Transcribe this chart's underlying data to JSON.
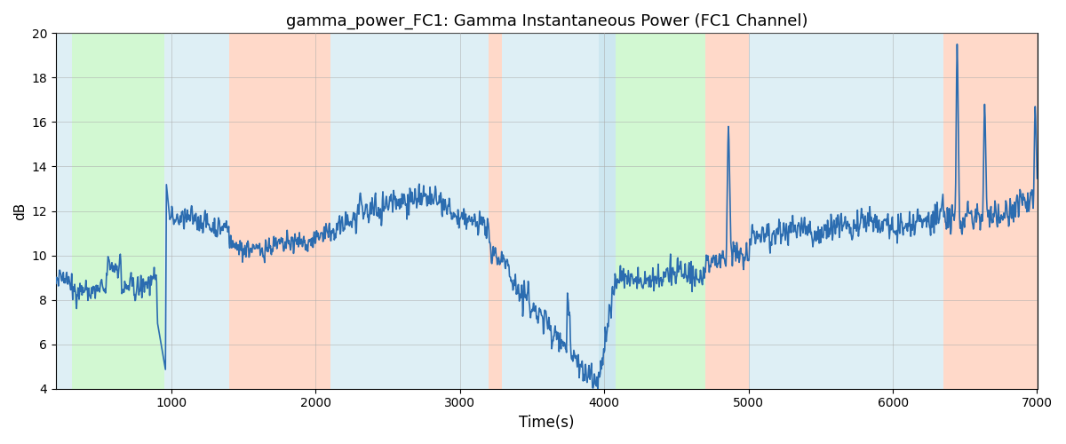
{
  "title": "gamma_power_FC1: Gamma Instantaneous Power (FC1 Channel)",
  "xlabel": "Time(s)",
  "ylabel": "dB",
  "xlim": [
    200,
    7000
  ],
  "ylim": [
    4,
    20
  ],
  "line_color": "#2b6cb0",
  "line_width": 1.2,
  "bg_color": "#ffffff",
  "grid_color": "#aaaaaa",
  "regions": [
    {
      "start": 200,
      "end": 310,
      "color": "#add8e6",
      "alpha": 0.4
    },
    {
      "start": 310,
      "end": 950,
      "color": "#90ee90",
      "alpha": 0.4
    },
    {
      "start": 950,
      "end": 1400,
      "color": "#add8e6",
      "alpha": 0.4
    },
    {
      "start": 1400,
      "end": 2100,
      "color": "#ffa07a",
      "alpha": 0.4
    },
    {
      "start": 2100,
      "end": 3200,
      "color": "#add8e6",
      "alpha": 0.4
    },
    {
      "start": 3200,
      "end": 3290,
      "color": "#ffa07a",
      "alpha": 0.4
    },
    {
      "start": 3290,
      "end": 3960,
      "color": "#add8e6",
      "alpha": 0.4
    },
    {
      "start": 3960,
      "end": 4080,
      "color": "#add8e6",
      "alpha": 0.6
    },
    {
      "start": 4080,
      "end": 4700,
      "color": "#90ee90",
      "alpha": 0.4
    },
    {
      "start": 4700,
      "end": 5000,
      "color": "#ffa07a",
      "alpha": 0.4
    },
    {
      "start": 5000,
      "end": 6350,
      "color": "#add8e6",
      "alpha": 0.4
    },
    {
      "start": 6350,
      "end": 7000,
      "color": "#ffa07a",
      "alpha": 0.4
    }
  ],
  "seed": 42
}
